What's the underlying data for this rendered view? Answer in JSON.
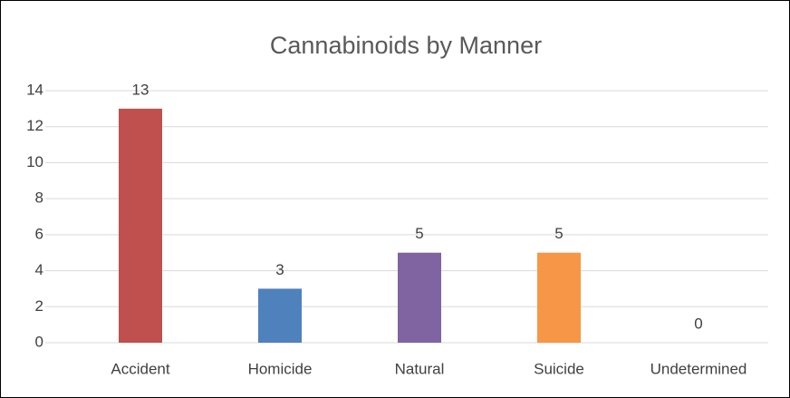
{
  "chart_data": {
    "type": "bar",
    "title": "Cannabinoids by Manner",
    "categories": [
      "Accident",
      "Homicide",
      "Natural",
      "Suicide",
      "Undetermined"
    ],
    "values": [
      13,
      3,
      5,
      5,
      0
    ],
    "colors": [
      "#c0504d",
      "#4f81bd",
      "#8064a2",
      "#f79646",
      "#4bacc6"
    ],
    "ylim": [
      0,
      14
    ],
    "yticks": [
      0,
      2,
      4,
      6,
      8,
      10,
      12,
      14
    ],
    "grid": true
  }
}
